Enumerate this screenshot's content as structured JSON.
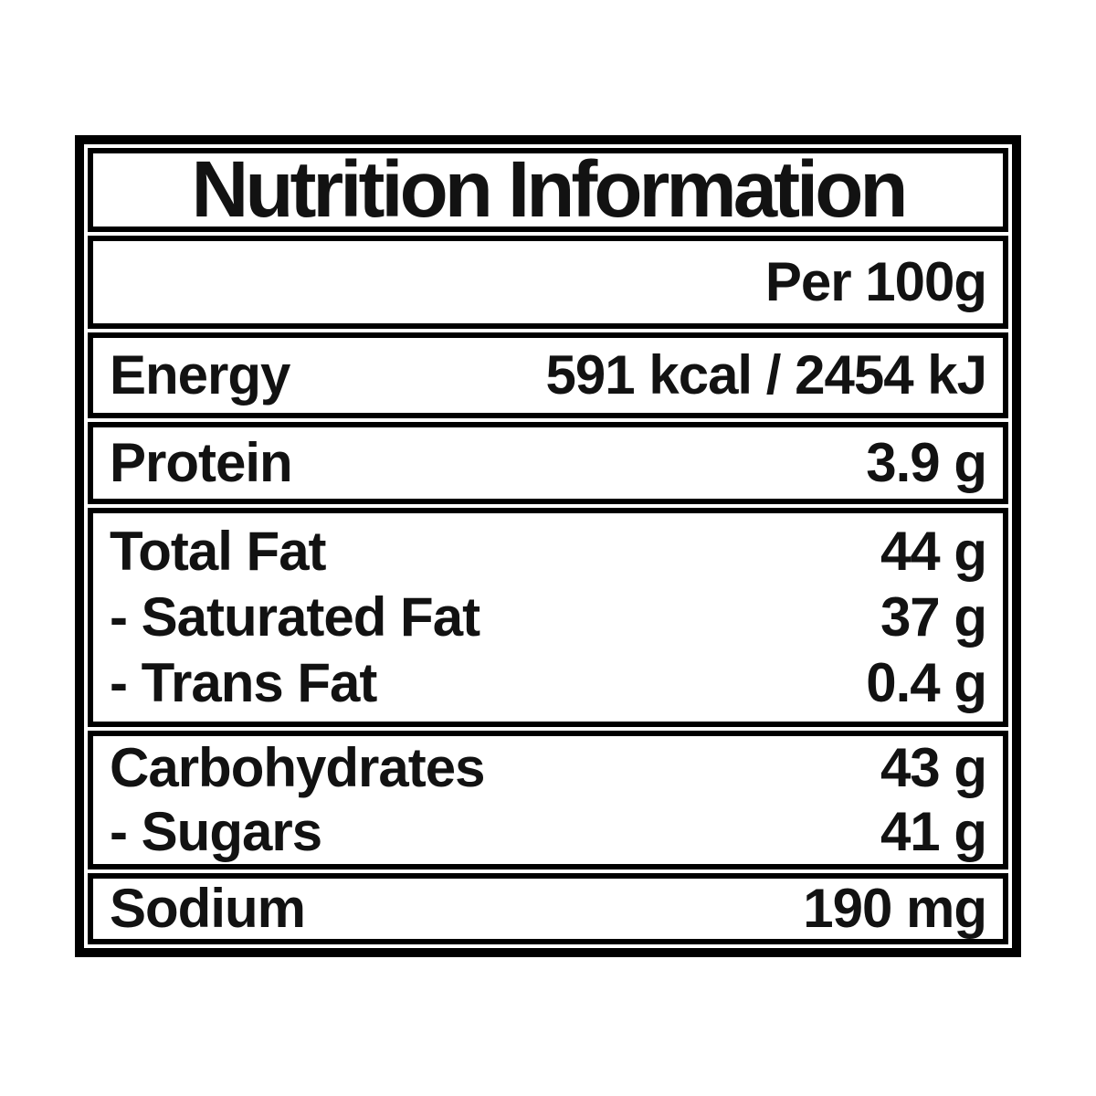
{
  "label": {
    "title": "Nutrition Information",
    "serving_header": "Per 100g",
    "colors": {
      "border": "#000000",
      "text": "#121212",
      "background": "#ffffff"
    },
    "sections": [
      {
        "name": "energy",
        "rows": [
          {
            "name": "Energy",
            "value": "591 kcal / 2454 kJ"
          }
        ]
      },
      {
        "name": "protein",
        "rows": [
          {
            "name": "Protein",
            "value": "3.9 g"
          }
        ]
      },
      {
        "name": "fat",
        "rows": [
          {
            "name": "Total Fat",
            "value": "44 g"
          },
          {
            "name": "- Saturated Fat",
            "value": "37 g"
          },
          {
            "name": "- Trans Fat",
            "value": "0.4 g"
          }
        ]
      },
      {
        "name": "carbohydrates",
        "rows": [
          {
            "name": "Carbohydrates",
            "value": "43 g"
          },
          {
            "name": "- Sugars",
            "value": "41 g"
          }
        ]
      },
      {
        "name": "sodium",
        "rows": [
          {
            "name": "Sodium",
            "value": "190 mg"
          }
        ]
      }
    ]
  }
}
